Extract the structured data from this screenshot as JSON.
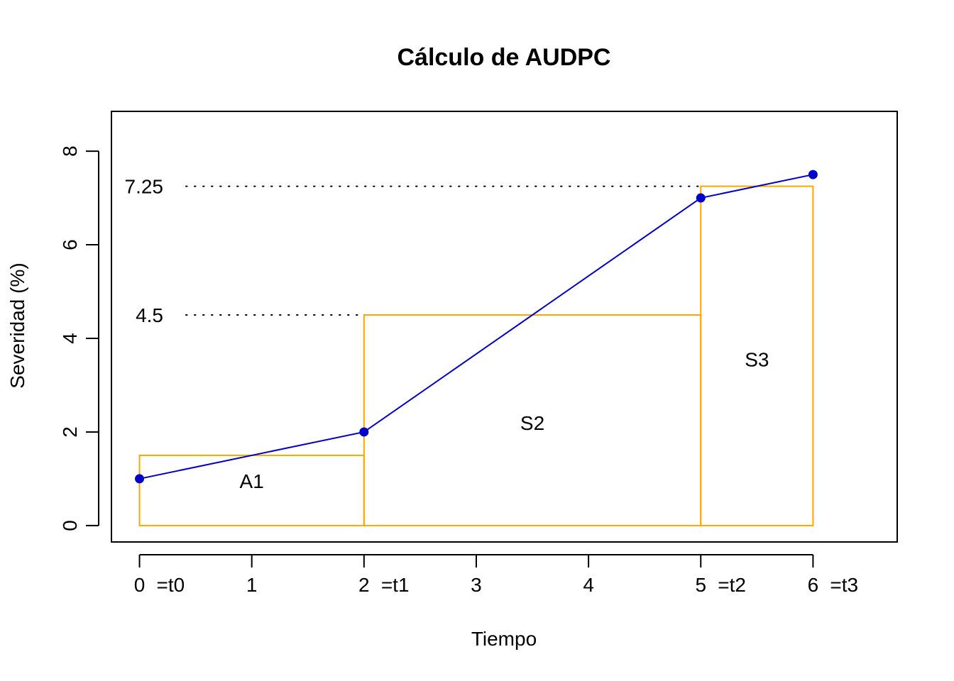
{
  "chart_data": {
    "type": "line",
    "title": "Cálculo de AUDPC",
    "xlabel": "Tiempo",
    "ylabel": "Severidad (%)",
    "xlim": [
      -0.25,
      6.75
    ],
    "ylim": [
      -0.35,
      8.85
    ],
    "x_ticks": [
      0,
      1,
      2,
      3,
      4,
      5,
      6
    ],
    "y_ticks": [
      0,
      2,
      4,
      6,
      8
    ],
    "time_markers": [
      {
        "x": 0,
        "label": "=t0"
      },
      {
        "x": 2,
        "label": "=t1"
      },
      {
        "x": 5,
        "label": "=t2"
      },
      {
        "x": 6,
        "label": "=t3"
      }
    ],
    "series": [
      {
        "x": [
          0,
          2,
          5,
          6
        ],
        "y": [
          1,
          2,
          7,
          7.5
        ],
        "color": "#0000CD"
      }
    ],
    "rectangles": [
      {
        "x0": 0,
        "x1": 2,
        "height": 1.5,
        "label": "A1",
        "label_x": 1,
        "label_y": 0.95
      },
      {
        "x0": 2,
        "x1": 5,
        "height": 4.5,
        "label": "S2",
        "label_x": 3.5,
        "label_y": 2.2
      },
      {
        "x0": 5,
        "x1": 6,
        "height": 7.25,
        "label": "S3",
        "label_x": 5.5,
        "label_y": 3.55
      }
    ],
    "rect_color": "#FFA500",
    "reference_lines": [
      {
        "y": 4.5,
        "x_end": 5,
        "label": "4.5"
      },
      {
        "y": 7.25,
        "x_end": 5,
        "label": "7.25"
      }
    ],
    "grid": false,
    "legend": "none"
  }
}
